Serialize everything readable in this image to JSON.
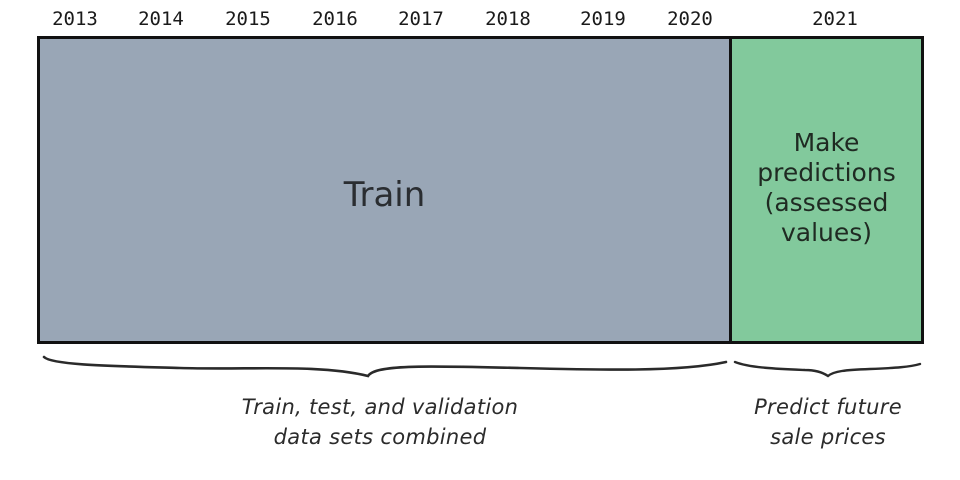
{
  "years": [
    "2013",
    "2014",
    "2015",
    "2016",
    "2017",
    "2018",
    "2019",
    "2020",
    "2021"
  ],
  "train_box": {
    "label": "Train",
    "color": "#99a6b6"
  },
  "predict_box": {
    "label": "Make\npredictions\n(assessed\nvalues)",
    "color": "#82c99c"
  },
  "captions": {
    "left": "Train, test, and validation\ndata sets combined",
    "right": "Predict future\nsale prices"
  }
}
